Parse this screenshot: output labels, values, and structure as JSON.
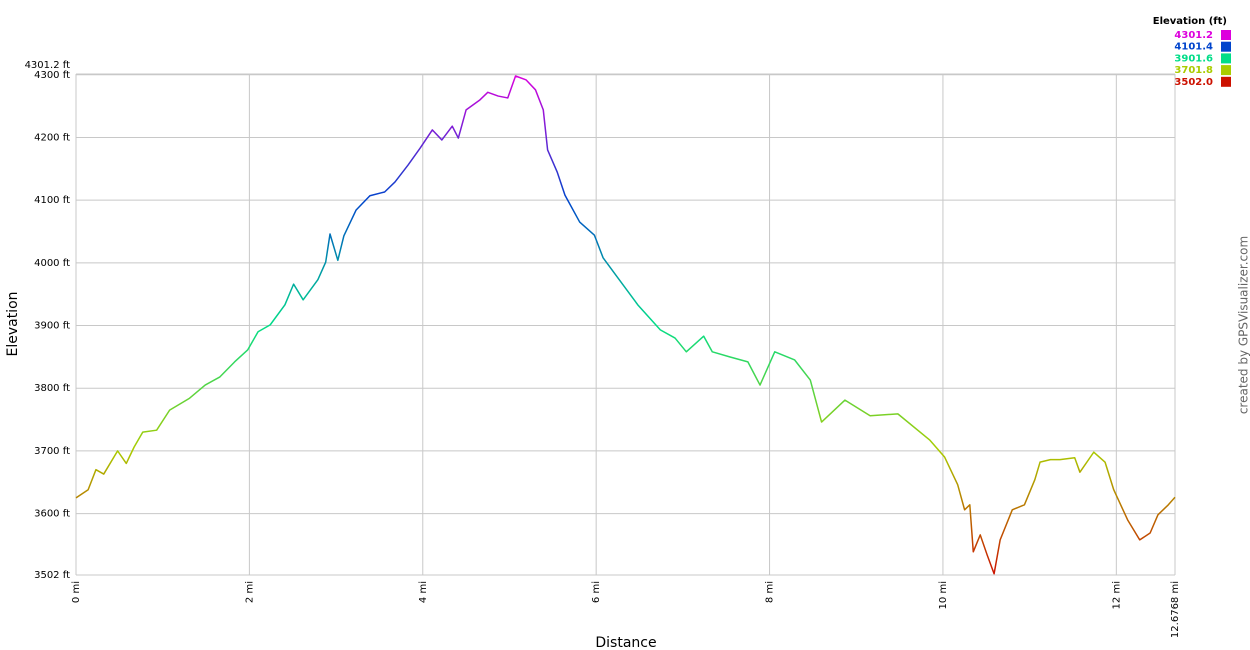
{
  "chart_data": {
    "type": "line",
    "x_label": "Distance",
    "y_label": "Elevation",
    "credit": "created by GPSVisualizer.com",
    "x": [
      0,
      0.14,
      0.23,
      0.32,
      0.48,
      0.58,
      0.67,
      0.77,
      0.93,
      1.08,
      1.31,
      1.49,
      1.66,
      1.83,
      1.98,
      2.1,
      2.24,
      2.41,
      2.51,
      2.62,
      2.79,
      2.88,
      2.93,
      3.02,
      3.09,
      3.23,
      3.39,
      3.56,
      3.68,
      3.83,
      3.97,
      4.11,
      4.22,
      4.34,
      4.41,
      4.5,
      4.66,
      4.75,
      4.87,
      4.98,
      5.07,
      5.19,
      5.3,
      5.39,
      5.44,
      5.55,
      5.64,
      5.81,
      5.98,
      6.08,
      6.25,
      6.48,
      6.74,
      6.91,
      7.04,
      7.24,
      7.34,
      7.54,
      7.75,
      7.89,
      8.06,
      8.29,
      8.47,
      8.6,
      8.87,
      9.16,
      9.48,
      9.85,
      10.02,
      10.17,
      10.25,
      10.31,
      10.35,
      10.43,
      10.51,
      10.59,
      10.66,
      10.8,
      10.94,
      11.06,
      11.12,
      11.24,
      11.35,
      11.52,
      11.58,
      11.74,
      11.87,
      11.97,
      12.13,
      12.27,
      12.39,
      12.48,
      12.6,
      12.6768
    ],
    "values": [
      3625,
      3638,
      3670,
      3663,
      3700,
      3680,
      3706,
      3730,
      3733,
      3765,
      3784,
      3805,
      3818,
      3842,
      3861,
      3890,
      3901,
      3933,
      3966,
      3941,
      3973,
      4001,
      4046,
      4004,
      4043,
      4084,
      4107,
      4113,
      4129,
      4156,
      4183,
      4212,
      4196,
      4218,
      4199,
      4244,
      4260,
      4272,
      4266,
      4263,
      4298,
      4292,
      4276,
      4244,
      4180,
      4145,
      4108,
      4065,
      4044,
      4008,
      3976,
      3933,
      3893,
      3880,
      3858,
      3883,
      3858,
      3850,
      3842,
      3805,
      3858,
      3845,
      3813,
      3746,
      3781,
      3756,
      3759,
      3717,
      3690,
      3646,
      3606,
      3614,
      3539,
      3566,
      3534,
      3504,
      3558,
      3606,
      3614,
      3654,
      3682,
      3686,
      3686,
      3689,
      3666,
      3698,
      3682,
      3638,
      3590,
      3558,
      3569,
      3598,
      3614,
      3626
    ],
    "xlim": [
      0,
      12.6768
    ],
    "xticks": [
      {
        "value": 0,
        "label": "0 mi"
      },
      {
        "value": 2,
        "label": "2 mi"
      },
      {
        "value": 4,
        "label": "4 mi"
      },
      {
        "value": 6,
        "label": "6 mi"
      },
      {
        "value": 8,
        "label": "8 mi"
      },
      {
        "value": 10,
        "label": "10 mi"
      },
      {
        "value": 12,
        "label": "12 mi"
      },
      {
        "value": 12.6768,
        "label": "12.6768 mi"
      }
    ],
    "ylim": [
      3502,
      4301.2
    ],
    "yticks": [
      {
        "value": 3502,
        "label": "3502 ft"
      },
      {
        "value": 3600,
        "label": "3600 ft"
      },
      {
        "value": 3700,
        "label": "3700 ft"
      },
      {
        "value": 3800,
        "label": "3800 ft"
      },
      {
        "value": 3900,
        "label": "3900 ft"
      },
      {
        "value": 4000,
        "label": "4000 ft"
      },
      {
        "value": 4100,
        "label": "4100 ft"
      },
      {
        "value": 4200,
        "label": "4200 ft"
      },
      {
        "value": 4300,
        "label": "4300 ft"
      },
      {
        "value": 4301.2,
        "label": "4301.2 ft"
      }
    ],
    "grid": true,
    "legend": {
      "title": "Elevation (ft)",
      "entries": [
        {
          "value": 4301.2,
          "color": "#dd00dd"
        },
        {
          "value": 4101.4,
          "color": "#0044cc"
        },
        {
          "value": 3901.6,
          "color": "#00dd88"
        },
        {
          "value": 3701.8,
          "color": "#aacc00"
        },
        {
          "value": 3502,
          "label": "3502.0",
          "color": "#cc1100"
        }
      ]
    }
  }
}
